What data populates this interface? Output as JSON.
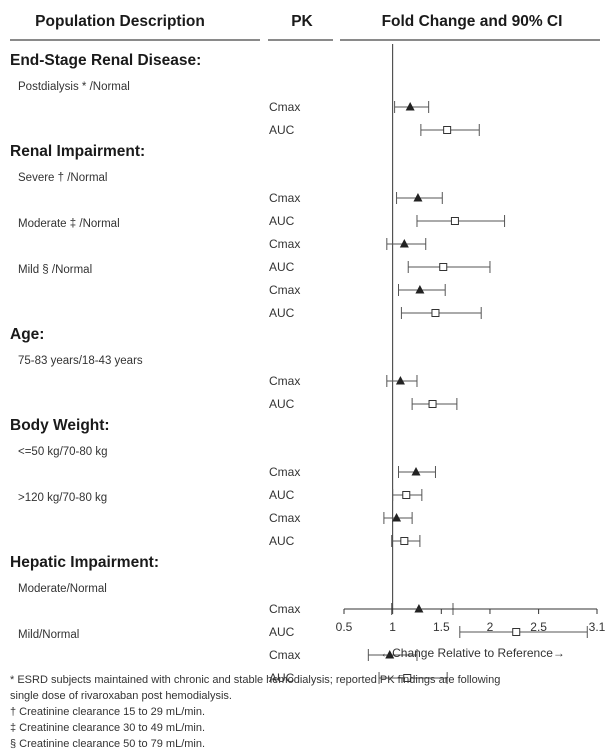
{
  "chart_data": {
    "type": "forest",
    "headers": {
      "population": "Population Description",
      "pk": "PK",
      "fold": "Fold Change and 90% CI"
    },
    "x_axis": {
      "min": 0.5,
      "max": 3.1,
      "ticks": [
        0.5,
        1,
        1.5,
        2,
        2.5,
        3.1
      ],
      "tick_labels": [
        "0.5",
        "1",
        "1.5",
        "2",
        "2.5",
        "3.1"
      ],
      "reference_line": 1,
      "label": "←Change Relative to Reference→"
    },
    "marker_legend": {
      "Cmax": "filled-triangle",
      "AUC": "open-square"
    },
    "groups": [
      {
        "title": "End-Stage Renal Disease:",
        "subgroups": [
          {
            "label": "Postdialysis * /Normal",
            "rows": [
              {
                "pk": "Cmax",
                "estimate": 1.18,
                "lower": 1.02,
                "upper": 1.37
              },
              {
                "pk": "AUC",
                "estimate": 1.56,
                "lower": 1.29,
                "upper": 1.89
              }
            ]
          }
        ]
      },
      {
        "title": "Renal Impairment:",
        "subgroups": [
          {
            "label": "Severe † /Normal",
            "rows": [
              {
                "pk": "Cmax",
                "estimate": 1.26,
                "lower": 1.04,
                "upper": 1.51
              },
              {
                "pk": "AUC",
                "estimate": 1.64,
                "lower": 1.25,
                "upper": 2.15
              }
            ]
          },
          {
            "label": "Moderate ‡ /Normal",
            "rows": [
              {
                "pk": "Cmax",
                "estimate": 1.12,
                "lower": 0.94,
                "upper": 1.34
              },
              {
                "pk": "AUC",
                "estimate": 1.52,
                "lower": 1.16,
                "upper": 2.0
              }
            ]
          },
          {
            "label": "Mild § /Normal",
            "rows": [
              {
                "pk": "Cmax",
                "estimate": 1.28,
                "lower": 1.06,
                "upper": 1.54
              },
              {
                "pk": "AUC",
                "estimate": 1.44,
                "lower": 1.09,
                "upper": 1.91
              }
            ]
          }
        ]
      },
      {
        "title": "Age:",
        "subgroups": [
          {
            "label": "75-83 years/18-43 years",
            "rows": [
              {
                "pk": "Cmax",
                "estimate": 1.08,
                "lower": 0.94,
                "upper": 1.25
              },
              {
                "pk": "AUC",
                "estimate": 1.41,
                "lower": 1.2,
                "upper": 1.66
              }
            ]
          }
        ]
      },
      {
        "title": "Body Weight:",
        "subgroups": [
          {
            "label": "<=50 kg/70-80 kg",
            "rows": [
              {
                "pk": "Cmax",
                "estimate": 1.24,
                "lower": 1.06,
                "upper": 1.44
              },
              {
                "pk": "AUC",
                "estimate": 1.14,
                "lower": 1.0,
                "upper": 1.3
              }
            ]
          },
          {
            "label": ">120 kg/70-80 kg",
            "rows": [
              {
                "pk": "Cmax",
                "estimate": 1.04,
                "lower": 0.91,
                "upper": 1.2
              },
              {
                "pk": "AUC",
                "estimate": 1.12,
                "lower": 0.99,
                "upper": 1.28
              }
            ]
          }
        ]
      },
      {
        "title": "Hepatic Impairment:",
        "subgroups": [
          {
            "label": "Moderate/Normal",
            "rows": [
              {
                "pk": "Cmax",
                "estimate": 1.27,
                "lower": 0.99,
                "upper": 1.62
              },
              {
                "pk": "AUC",
                "estimate": 2.27,
                "lower": 1.69,
                "upper": 3.0
              }
            ]
          },
          {
            "label": "Mild/Normal",
            "rows": [
              {
                "pk": "Cmax",
                "estimate": 0.97,
                "lower": 0.75,
                "upper": 1.25
              },
              {
                "pk": "AUC",
                "estimate": 1.15,
                "lower": 0.86,
                "upper": 1.56
              }
            ]
          }
        ]
      }
    ]
  },
  "footnotes": [
    "* ESRD subjects maintained with chronic and stable hemodialysis; reported PK findings are following",
    "single dose of rivaroxaban post hemodialysis.",
    "† Creatinine clearance 15 to 29 mL/min.",
    "‡ Creatinine clearance 30 to 49 mL/min.",
    "§ Creatinine clearance 50 to 79 mL/min."
  ]
}
